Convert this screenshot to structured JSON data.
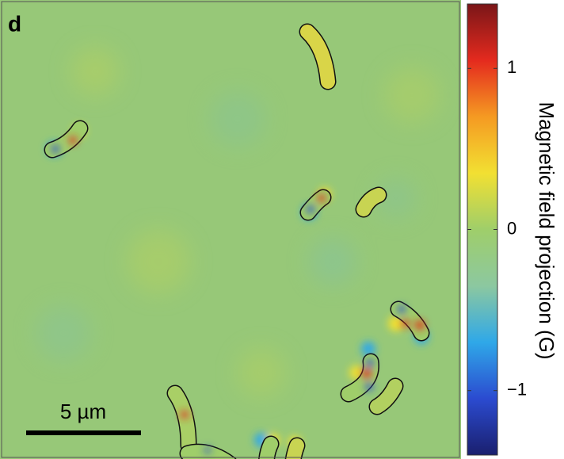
{
  "chart_data": {
    "type": "heatmap",
    "panel_label": "d",
    "scale_bar": "5 µm",
    "colorbar": {
      "label": "Magnetic field projection (G)",
      "clim": [
        -1.4,
        1.4
      ],
      "ticks": [
        {
          "value": -1,
          "label": "−1"
        },
        0,
        1
      ],
      "colormap": [
        "#1a1f6e",
        "#2b4bd0",
        "#2fa8e8",
        "#8cc8a0",
        "#9fce6a",
        "#f2e032",
        "#f59a22",
        "#e42a1e",
        "#7a1618"
      ]
    }
  }
}
